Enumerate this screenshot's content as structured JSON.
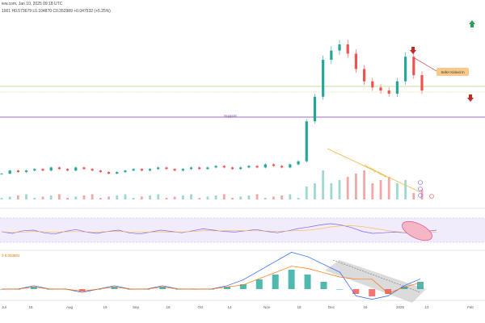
{
  "header": {
    "line1": "iew.com, Jan 10, 2025 09:18 UTC",
    "line2": "1001 H0.573679 L0.104870 C0.352989 +0.047532 (+5.25%)"
  },
  "annotations": {
    "support_label": "Support",
    "callout_label": "Seller Kicked In",
    "volume_note": "Declining Volume"
  },
  "macd": {
    "header": "3 0.003801"
  },
  "colors": {
    "up": "#26a69a",
    "down": "#ef5350",
    "support": "#7b3fa6",
    "resistance": "#8bc34a",
    "rsi": "#7b61ff",
    "rsi_ma": "#f5b942",
    "macd": "#2962ff",
    "signal": "#ff6d00",
    "arrow_up": "#2e9e57",
    "arrow_down": "#c62828"
  },
  "chart_data": {
    "type": "line",
    "x_ticks": [
      "Jul",
      "15",
      "Aug",
      "19",
      "Sep",
      "16",
      "Oct",
      "14",
      "Nov",
      "18",
      "Dec",
      "16",
      "2025",
      "13",
      "Feb"
    ],
    "price_levels": {
      "support": 0.25,
      "resistance_upper": 0.4,
      "resistance_lower": 0.38
    },
    "price_series_close": [
      0.08,
      0.09,
      0.085,
      0.09,
      0.095,
      0.09,
      0.1,
      0.095,
      0.09,
      0.1,
      0.095,
      0.09,
      0.085,
      0.08,
      0.085,
      0.09,
      0.095,
      0.09,
      0.095,
      0.1,
      0.095,
      0.09,
      0.095,
      0.1,
      0.095,
      0.1,
      0.105,
      0.1,
      0.095,
      0.1,
      0.105,
      0.1,
      0.11,
      0.105,
      0.1,
      0.11,
      0.12,
      0.25,
      0.33,
      0.45,
      0.48,
      0.5,
      0.47,
      0.42,
      0.38,
      0.36,
      0.35,
      0.34,
      0.38,
      0.46,
      0.4,
      0.35
    ],
    "rsi": [
      45,
      40,
      48,
      50,
      42,
      38,
      46,
      52,
      44,
      40,
      46,
      50,
      42,
      38,
      44,
      50,
      46,
      42,
      48,
      54,
      50,
      46,
      44,
      48,
      52,
      46,
      42,
      48,
      55,
      60,
      66,
      70,
      66,
      58,
      46,
      40,
      42,
      44,
      42,
      38,
      46,
      50
    ],
    "macd_hist": [
      0.0,
      0.0,
      0.001,
      0.0,
      0.0,
      -0.001,
      0.0,
      0.001,
      0.0,
      0.0,
      0.001,
      0.0,
      0.0,
      0.0,
      0.001,
      0.002,
      0.004,
      0.006,
      0.008,
      0.006,
      0.003,
      0.0,
      -0.002,
      -0.003,
      -0.002,
      0.001,
      0.003
    ]
  }
}
